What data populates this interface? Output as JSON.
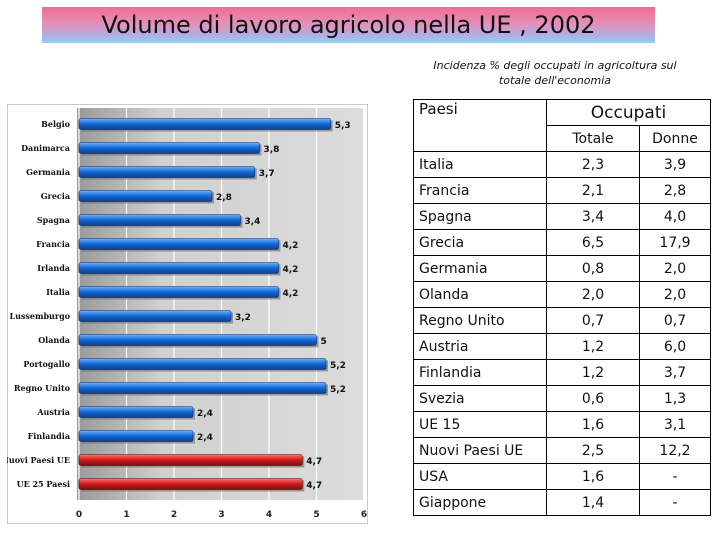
{
  "title": "Volume di lavoro agricolo nella UE , 2002",
  "subtitle": "Incidenza % degli occupati in agricoltura sul totale dell'economia",
  "chart_data": {
    "type": "bar",
    "orientation": "horizontal",
    "categories": [
      "Belgio",
      "Danimarca",
      "Germania",
      "Grecia",
      "Spagna",
      "Francia",
      "Irlanda",
      "Italia",
      "Lussemburgo",
      "Olanda",
      "Portogallo",
      "Regno Unito",
      "Austria",
      "Finlandia",
      "Nuovi Paesi UE",
      "UE 25 Paesi"
    ],
    "values": [
      5.3,
      3.8,
      3.7,
      2.8,
      3.4,
      4.2,
      4.2,
      4.2,
      3.2,
      5,
      5.2,
      5.2,
      2.4,
      2.4,
      4.7,
      4.7
    ],
    "value_labels": [
      "5,3",
      "3,8",
      "3,7",
      "2,8",
      "3,4",
      "4,2",
      "4,2",
      "4,2",
      "3,2",
      "5",
      "5,2",
      "5,2",
      "2,4",
      "2,4",
      "4,7",
      "4,7"
    ],
    "xlim": [
      0,
      6
    ],
    "xticks": [
      0,
      1,
      2,
      3,
      4,
      5,
      6
    ],
    "grid": true,
    "colors": {
      "default": "#1a6ed8",
      "highlight": "#d42020",
      "plot_bg": "#c8c8c8"
    },
    "highlighted": [
      "Nuovi Paesi UE",
      "UE 25 Paesi"
    ]
  },
  "table": {
    "header_country": "Paesi",
    "header_group": "Occupati",
    "header_total": "Totale",
    "header_women": "Donne",
    "rows": [
      {
        "country": "Italia",
        "total": "2,3",
        "women": "3,9"
      },
      {
        "country": "Francia",
        "total": "2,1",
        "women": "2,8"
      },
      {
        "country": "Spagna",
        "total": "3,4",
        "women": "4,0"
      },
      {
        "country": "Grecia",
        "total": "6,5",
        "women": "17,9"
      },
      {
        "country": "Germania",
        "total": "0,8",
        "women": "2,0"
      },
      {
        "country": "Olanda",
        "total": "2,0",
        "women": "2,0"
      },
      {
        "country": "Regno Unito",
        "total": "0,7",
        "women": "0,7"
      },
      {
        "country": "Austria",
        "total": "1,2",
        "women": "6,0"
      },
      {
        "country": "Finlandia",
        "total": "1,2",
        "women": "3,7"
      },
      {
        "country": "Svezia",
        "total": "0,6",
        "women": "1,3"
      },
      {
        "country": "UE 15",
        "total": "1,6",
        "women": "3,1"
      },
      {
        "country": "Nuovi Paesi UE",
        "total": "2,5",
        "women": "12,2"
      },
      {
        "country": "USA",
        "total": "1,6",
        "women": "-"
      },
      {
        "country": "Giappone",
        "total": "1,4",
        "women": "-"
      }
    ]
  }
}
